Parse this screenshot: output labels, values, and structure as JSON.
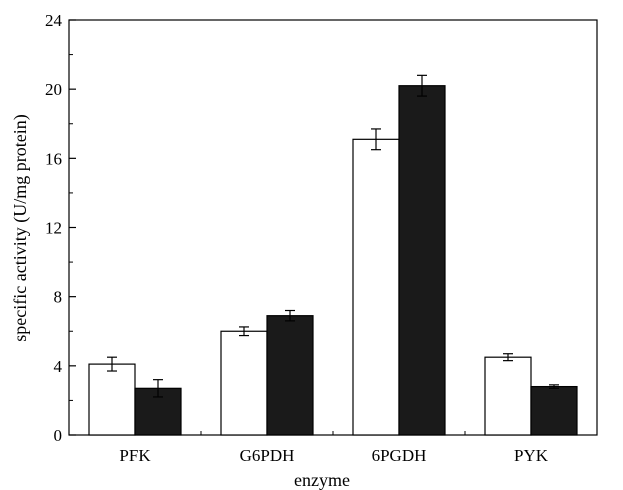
{
  "chart_data": {
    "type": "bar",
    "title": "",
    "xlabel": "enzyme",
    "ylabel": "specific activity (U/mg protein)",
    "categories": [
      "PFK",
      "G6PDH",
      "6PGDH",
      "PYK"
    ],
    "ylim": [
      0,
      24
    ],
    "yticks": [
      0,
      4,
      8,
      12,
      16,
      20,
      24
    ],
    "ytick_labels": [
      "0",
      "4",
      "8",
      "12",
      "16",
      "20",
      "24"
    ],
    "grid": false,
    "legend": "none",
    "series": [
      {
        "fill": "#ffffff",
        "values": [
          4.1,
          6.0,
          17.1,
          4.5
        ],
        "errors": [
          0.4,
          0.25,
          0.6,
          0.2
        ]
      },
      {
        "fill": "#1a1a1a",
        "values": [
          2.7,
          6.9,
          20.2,
          2.8
        ],
        "errors": [
          0.5,
          0.3,
          0.6,
          0.1
        ]
      }
    ]
  }
}
